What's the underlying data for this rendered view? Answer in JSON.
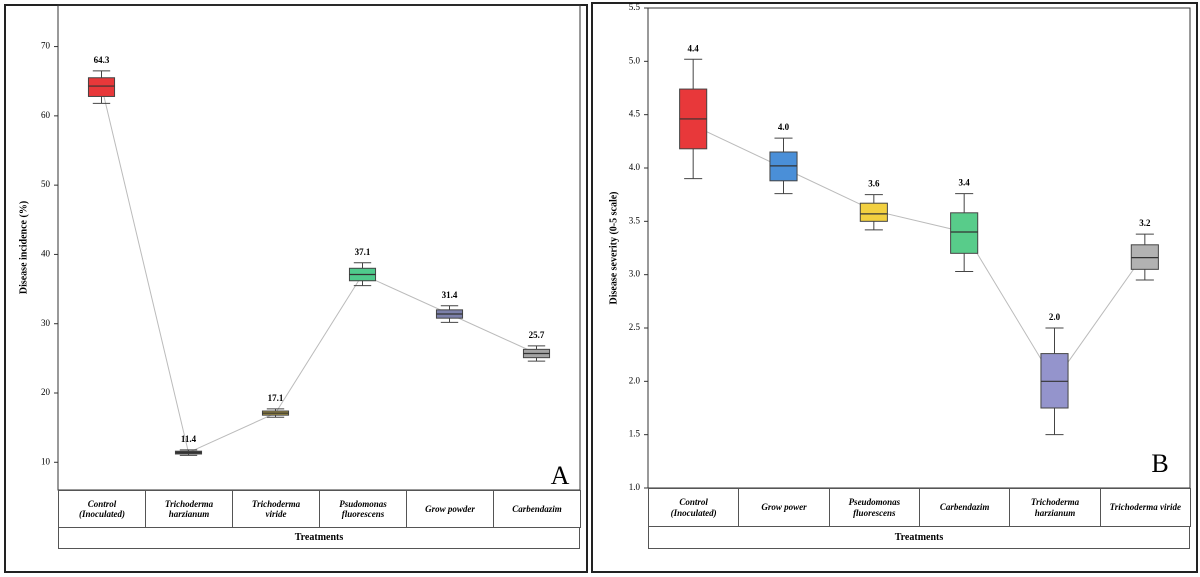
{
  "chart_data": [
    {
      "type": "box",
      "annotation": "A",
      "y_label": "Disease incidence (%)",
      "x_label": "Treatments",
      "categories": [
        "Control (Inoculated)",
        "Trichoderma harzianum",
        "Trichoderma viride",
        "Psudomonas fluorescens",
        "Grow powder",
        "Carbendazim"
      ],
      "whisker_low": [
        61.8,
        11.0,
        16.5,
        35.5,
        30.2,
        24.6
      ],
      "q1": [
        62.8,
        11.2,
        16.8,
        36.2,
        30.8,
        25.1
      ],
      "median": [
        64.3,
        11.4,
        17.1,
        37.1,
        31.4,
        25.7
      ],
      "q3": [
        65.5,
        11.6,
        17.4,
        38.0,
        32.0,
        26.3
      ],
      "whisker_high": [
        66.5,
        11.8,
        17.7,
        38.8,
        32.6,
        26.8
      ],
      "means": [
        64.3,
        11.4,
        17.1,
        37.1,
        31.4,
        25.7
      ],
      "colors": [
        "#e8383a",
        "#3a3a3a",
        "#a89440",
        "#4fca8c",
        "#7c80aa",
        "#a4a4a4"
      ],
      "ylim": [
        6,
        76
      ],
      "yticks": [
        10,
        20,
        30,
        40,
        50,
        60,
        70
      ]
    },
    {
      "type": "box",
      "annotation": "B",
      "y_label": "Disease severity (0-5 scale)",
      "x_label": "Treatments",
      "categories": [
        "Control (Inoculated)",
        "Grow power",
        "Pseudomonas fluorescens",
        "Carbendazim",
        "Trichoderma harzianum",
        "Trichoderma viride"
      ],
      "whisker_low": [
        3.9,
        3.76,
        3.42,
        3.03,
        1.5,
        2.95
      ],
      "q1": [
        4.18,
        3.88,
        3.5,
        3.2,
        1.75,
        3.05
      ],
      "median": [
        4.46,
        4.02,
        3.57,
        3.4,
        2.0,
        3.16
      ],
      "q3": [
        4.74,
        4.15,
        3.67,
        3.58,
        2.26,
        3.28
      ],
      "whisker_high": [
        5.02,
        4.28,
        3.75,
        3.76,
        2.5,
        3.38
      ],
      "means": [
        4.4,
        4.0,
        3.6,
        3.4,
        2.0,
        3.2
      ],
      "value_labels": [
        "4.4",
        "4.0",
        "3.6",
        "3.4",
        "2.0",
        "3.2"
      ],
      "colors": [
        "#e8383a",
        "#4a8fd8",
        "#f2d040",
        "#58cc8a",
        "#9494cc",
        "#b2b2b2"
      ],
      "ylim": [
        1.0,
        5.5
      ],
      "yticks": [
        {
          "value": 1.0,
          "label": "1.0"
        },
        {
          "value": 1.5,
          "label": "1.5"
        },
        {
          "value": 2.0,
          "label": "2.0"
        },
        {
          "value": 2.5,
          "label": "2.5"
        },
        {
          "value": 3.0,
          "label": "3.0"
        },
        {
          "value": 3.5,
          "label": "3.5"
        },
        {
          "value": 4.0,
          "label": "4.0"
        },
        {
          "value": 4.5,
          "label": "4.5"
        },
        {
          "value": 5.0,
          "label": "5.0"
        },
        {
          "value": 5.5,
          "label": "5.5"
        }
      ]
    }
  ]
}
